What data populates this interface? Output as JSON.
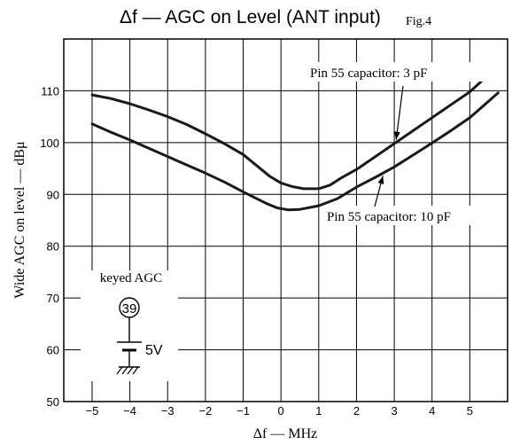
{
  "chart_data": {
    "type": "line",
    "title": "Δf — AGC on Level (ANT input)",
    "figure_label": "Fig.4",
    "xlabel": "Δf — MHz",
    "ylabel": "Wide AGC on level — dBμ",
    "xlim": [
      -5.75,
      6
    ],
    "ylim": [
      50,
      120
    ],
    "xticks": [
      -5,
      -4,
      -3,
      -2,
      -1,
      0,
      1,
      2,
      3,
      4,
      5
    ],
    "yticks": [
      50,
      60,
      70,
      80,
      90,
      100,
      110
    ],
    "grid": true,
    "series": [
      {
        "name": "Pin 55 capacitor: 3 pF",
        "x": [
          -5,
          -4.5,
          -4,
          -3.5,
          -3,
          -2.5,
          -2,
          -1.5,
          -1,
          -0.7,
          -0.5,
          -0.3,
          0,
          0.3,
          0.6,
          1,
          1.3,
          1.6,
          2,
          2.5,
          3,
          3.5,
          4,
          4.5,
          5,
          5.75
        ],
        "y": [
          109.2,
          108.5,
          107.5,
          106.3,
          105,
          103.5,
          101.7,
          99.8,
          97.7,
          95.9,
          94.7,
          93.5,
          92.2,
          91.5,
          91.1,
          91.1,
          91.8,
          93.2,
          94.8,
          97.3,
          99.8,
          102.3,
          104.8,
          107.3,
          109.8,
          114.8
        ]
      },
      {
        "name": "Pin 55 capacitor: 10 pF",
        "x": [
          -5,
          -4.5,
          -4,
          -3.5,
          -3,
          -2.5,
          -2,
          -1.5,
          -1,
          -0.7,
          -0.4,
          -0.1,
          0.2,
          0.5,
          1,
          1.5,
          2,
          2.5,
          3,
          3.5,
          4,
          4.5,
          5,
          5.75
        ],
        "y": [
          103.6,
          102,
          100.5,
          98.9,
          97.3,
          95.7,
          94.1,
          92.4,
          90.5,
          89.4,
          88.3,
          87.4,
          87,
          87.1,
          87.8,
          89.2,
          91.4,
          93.3,
          95.3,
          97.6,
          99.9,
          102.3,
          104.8,
          109.6
        ]
      }
    ],
    "annotations": [
      {
        "text": "Pin 55 capacitor: 3 pF",
        "series": 0,
        "arrow_to_x": 3.05
      },
      {
        "text": "Pin 55 capacitor: 10 pF",
        "series": 1,
        "arrow_to_x": 2.7
      }
    ],
    "inset": {
      "label": "keyed AGC",
      "pin": "39",
      "voltage": "5V"
    }
  }
}
